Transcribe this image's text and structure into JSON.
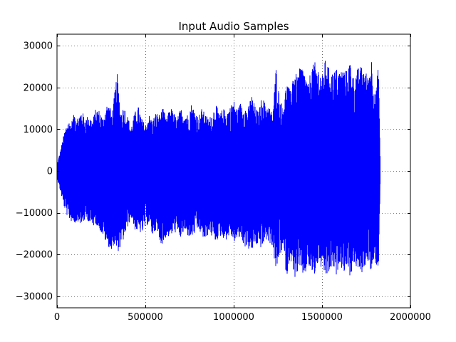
{
  "chart_data": {
    "type": "line",
    "title": "Input Audio Samples",
    "xlabel": "",
    "ylabel": "",
    "xlim": [
      0,
      2000000
    ],
    "ylim": [
      -32768,
      32768
    ],
    "x_ticks": [
      0,
      500000,
      1000000,
      1500000,
      2000000
    ],
    "x_tick_labels": [
      "0",
      "500000",
      "1000000",
      "1500000",
      "2000000"
    ],
    "y_ticks": [
      30000,
      20000,
      10000,
      0,
      -10000,
      -20000,
      -30000
    ],
    "y_tick_labels": [
      "30000",
      "20000",
      "10000",
      "0",
      "−10000",
      "−20000",
      "−30000"
    ],
    "grid": true,
    "legend": "none",
    "series": [
      {
        "color": "#0000ff",
        "sample_count": 1830000,
        "envelope_x": [
          0,
          20000,
          40000,
          60000,
          80000,
          100000,
          120000,
          140000,
          160000,
          180000,
          200000,
          220000,
          240000,
          260000,
          280000,
          300000,
          310000,
          320000,
          340000,
          360000,
          380000,
          400000,
          420000,
          440000,
          460000,
          480000,
          500000,
          520000,
          540000,
          560000,
          580000,
          600000,
          620000,
          640000,
          660000,
          680000,
          700000,
          720000,
          740000,
          760000,
          780000,
          800000,
          820000,
          840000,
          860000,
          880000,
          900000,
          920000,
          940000,
          960000,
          980000,
          1000000,
          1020000,
          1040000,
          1060000,
          1080000,
          1100000,
          1120000,
          1140000,
          1160000,
          1180000,
          1200000,
          1220000,
          1240000,
          1260000,
          1280000,
          1300000,
          1320000,
          1340000,
          1360000,
          1380000,
          1400000,
          1420000,
          1440000,
          1460000,
          1480000,
          1500000,
          1520000,
          1540000,
          1560000,
          1580000,
          1600000,
          1620000,
          1640000,
          1660000,
          1680000,
          1700000,
          1720000,
          1740000,
          1760000,
          1780000,
          1800000,
          1820000,
          1830000
        ],
        "envelope_max": [
          1500,
          5000,
          9000,
          12000,
          11500,
          14000,
          13000,
          14500,
          12500,
          13500,
          12000,
          15000,
          14500,
          12500,
          16000,
          15500,
          13500,
          16500,
          23500,
          14000,
          15500,
          13000,
          10500,
          14000,
          15500,
          12500,
          11000,
          13500,
          12000,
          14000,
          13500,
          15000,
          12500,
          15500,
          14000,
          12500,
          15000,
          14000,
          13500,
          16000,
          14500,
          13000,
          15000,
          13500,
          12500,
          14000,
          16000,
          13500,
          15000,
          14000,
          15500,
          17000,
          14500,
          16500,
          15500,
          14500,
          18500,
          15500,
          14000,
          18000,
          16000,
          15500,
          13500,
          25000,
          17500,
          15500,
          21500,
          19000,
          24500,
          22500,
          25500,
          24000,
          20500,
          25000,
          26000,
          24500,
          22500,
          27000,
          24500,
          23500,
          24500,
          24000,
          24500,
          24000,
          26500,
          22000,
          24500,
          25000,
          24500,
          22500,
          27000,
          17500,
          26000,
          0
        ],
        "envelope_min": [
          -1500,
          -5000,
          -8500,
          -11000,
          -12000,
          -12500,
          -12000,
          -13000,
          -11500,
          -12000,
          -13500,
          -12500,
          -14000,
          -15500,
          -17500,
          -18500,
          -20000,
          -17500,
          -19500,
          -18500,
          -16000,
          -13500,
          -11000,
          -14000,
          -14500,
          -15000,
          -13500,
          -12500,
          -15500,
          -14000,
          -17000,
          -17500,
          -15500,
          -16000,
          -14500,
          -15000,
          -16000,
          -14500,
          -15500,
          -16000,
          -15000,
          -14000,
          -15500,
          -17000,
          -14500,
          -16000,
          -17000,
          -15500,
          -16000,
          -16500,
          -15000,
          -17000,
          -16500,
          -16000,
          -18000,
          -18500,
          -19500,
          -17500,
          -18000,
          -18500,
          -16500,
          -17000,
          -18000,
          -24500,
          -20000,
          -19000,
          -25500,
          -20500,
          -26000,
          -24500,
          -24000,
          -25500,
          -22500,
          -24500,
          -25000,
          -21500,
          -24000,
          -25500,
          -24500,
          -23000,
          -25500,
          -21500,
          -24500,
          -22500,
          -25500,
          -22000,
          -23500,
          -25000,
          -23000,
          -21500,
          -25000,
          -22000,
          -23500,
          0
        ]
      }
    ]
  }
}
